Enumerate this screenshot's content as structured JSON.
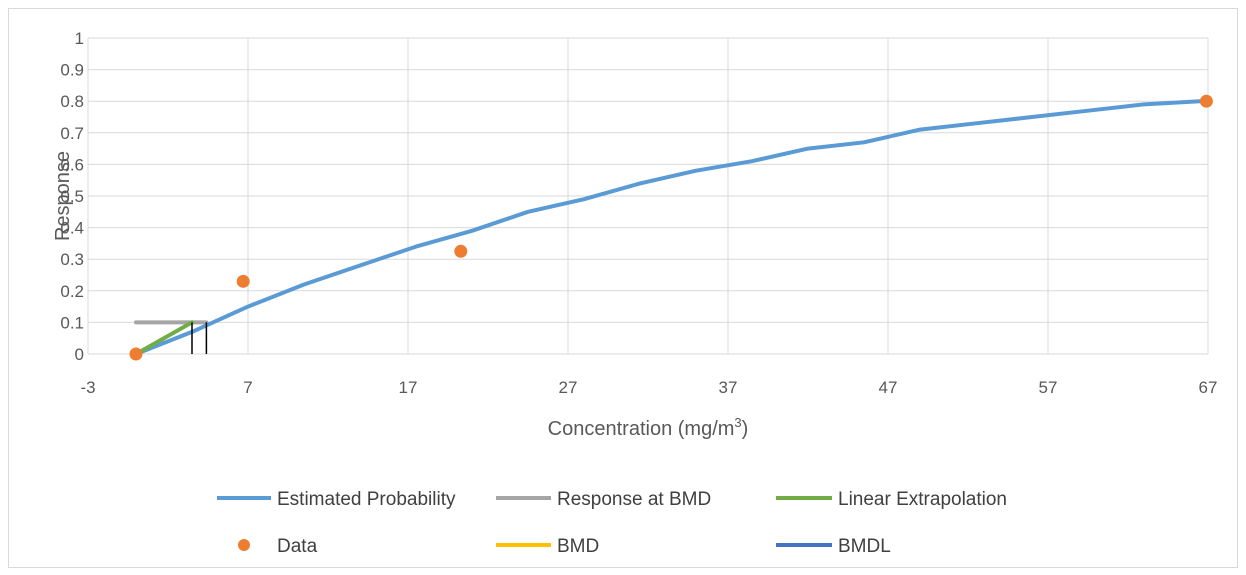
{
  "chart_data": {
    "type": "line",
    "title": "",
    "xlabel": "Concentration (mg/m",
    "xlabel_superscript": "3",
    "xlabel_suffix": ")",
    "ylabel": "Response",
    "xlim": [
      -3,
      67
    ],
    "ylim": [
      0,
      1
    ],
    "x_ticks": [
      -3,
      7,
      17,
      27,
      37,
      47,
      57,
      67
    ],
    "y_ticks": [
      0,
      0.1,
      0.2,
      0.3,
      0.4,
      0.5,
      0.6,
      0.7,
      0.8,
      0.9,
      1
    ],
    "grid": true,
    "legend_position": "bottom",
    "series": [
      {
        "name": "Estimated Probability",
        "kind": "line",
        "color": "#5b9bd5",
        "x": [
          0,
          3.5,
          7,
          10.5,
          14,
          17.5,
          21,
          24.5,
          28,
          31.5,
          35,
          38.5,
          42,
          45.5,
          49,
          52.5,
          56,
          59.5,
          63,
          66.5
        ],
        "y": [
          0,
          0.07,
          0.15,
          0.22,
          0.28,
          0.34,
          0.39,
          0.45,
          0.49,
          0.54,
          0.58,
          0.61,
          0.65,
          0.67,
          0.71,
          0.73,
          0.75,
          0.77,
          0.79,
          0.8
        ]
      },
      {
        "name": "Response at BMD",
        "kind": "line",
        "color": "#a5a5a5",
        "x": [
          0,
          4.4
        ],
        "y": [
          0.1,
          0.1
        ]
      },
      {
        "name": "Linear Extrapolation",
        "kind": "line",
        "color": "#70ad47",
        "x": [
          0,
          3.5
        ],
        "y": [
          0,
          0.1
        ]
      },
      {
        "name": "Data",
        "kind": "marker",
        "color": "#ed7d31",
        "x": [
          0,
          6.7,
          20.3,
          66.9
        ],
        "y": [
          0,
          0.23,
          0.325,
          0.8
        ]
      },
      {
        "name": "BMD",
        "kind": "line",
        "color": "#ffc000",
        "x": [
          4.4,
          4.4
        ],
        "y": [
          0,
          0.1
        ]
      },
      {
        "name": "BMDL",
        "kind": "line",
        "color": "#4472c4",
        "x": [
          3.5,
          3.5
        ],
        "y": [
          0,
          0.1
        ]
      }
    ],
    "bmd_markers": {
      "color": "#000000",
      "x": [
        3.5,
        4.4
      ],
      "y": [
        0,
        0.1
      ]
    }
  }
}
